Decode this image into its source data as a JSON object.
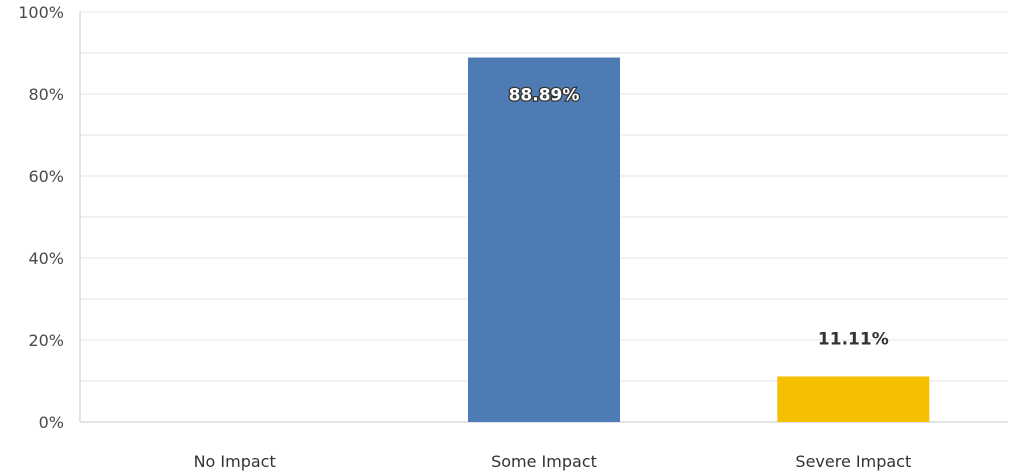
{
  "chart_data": {
    "type": "bar",
    "categories": [
      "No Impact",
      "Some Impact",
      "Severe Impact"
    ],
    "values": [
      0,
      88.89,
      11.11
    ],
    "value_labels": [
      "",
      "88.89%",
      "11.11%"
    ],
    "colors": [
      "#4e7bb4",
      "#4e7bb4",
      "#f5bf00"
    ],
    "ylim": [
      0,
      100
    ],
    "yticks": [
      0,
      20,
      40,
      60,
      80,
      100
    ],
    "ytick_labels": [
      "0%",
      "20%",
      "40%",
      "60%",
      "80%",
      "100%"
    ],
    "title": "",
    "xlabel": "",
    "ylabel": "",
    "grid": true,
    "gridline_color": "#e5e5e5",
    "axis_color": "#c8c8c8"
  }
}
